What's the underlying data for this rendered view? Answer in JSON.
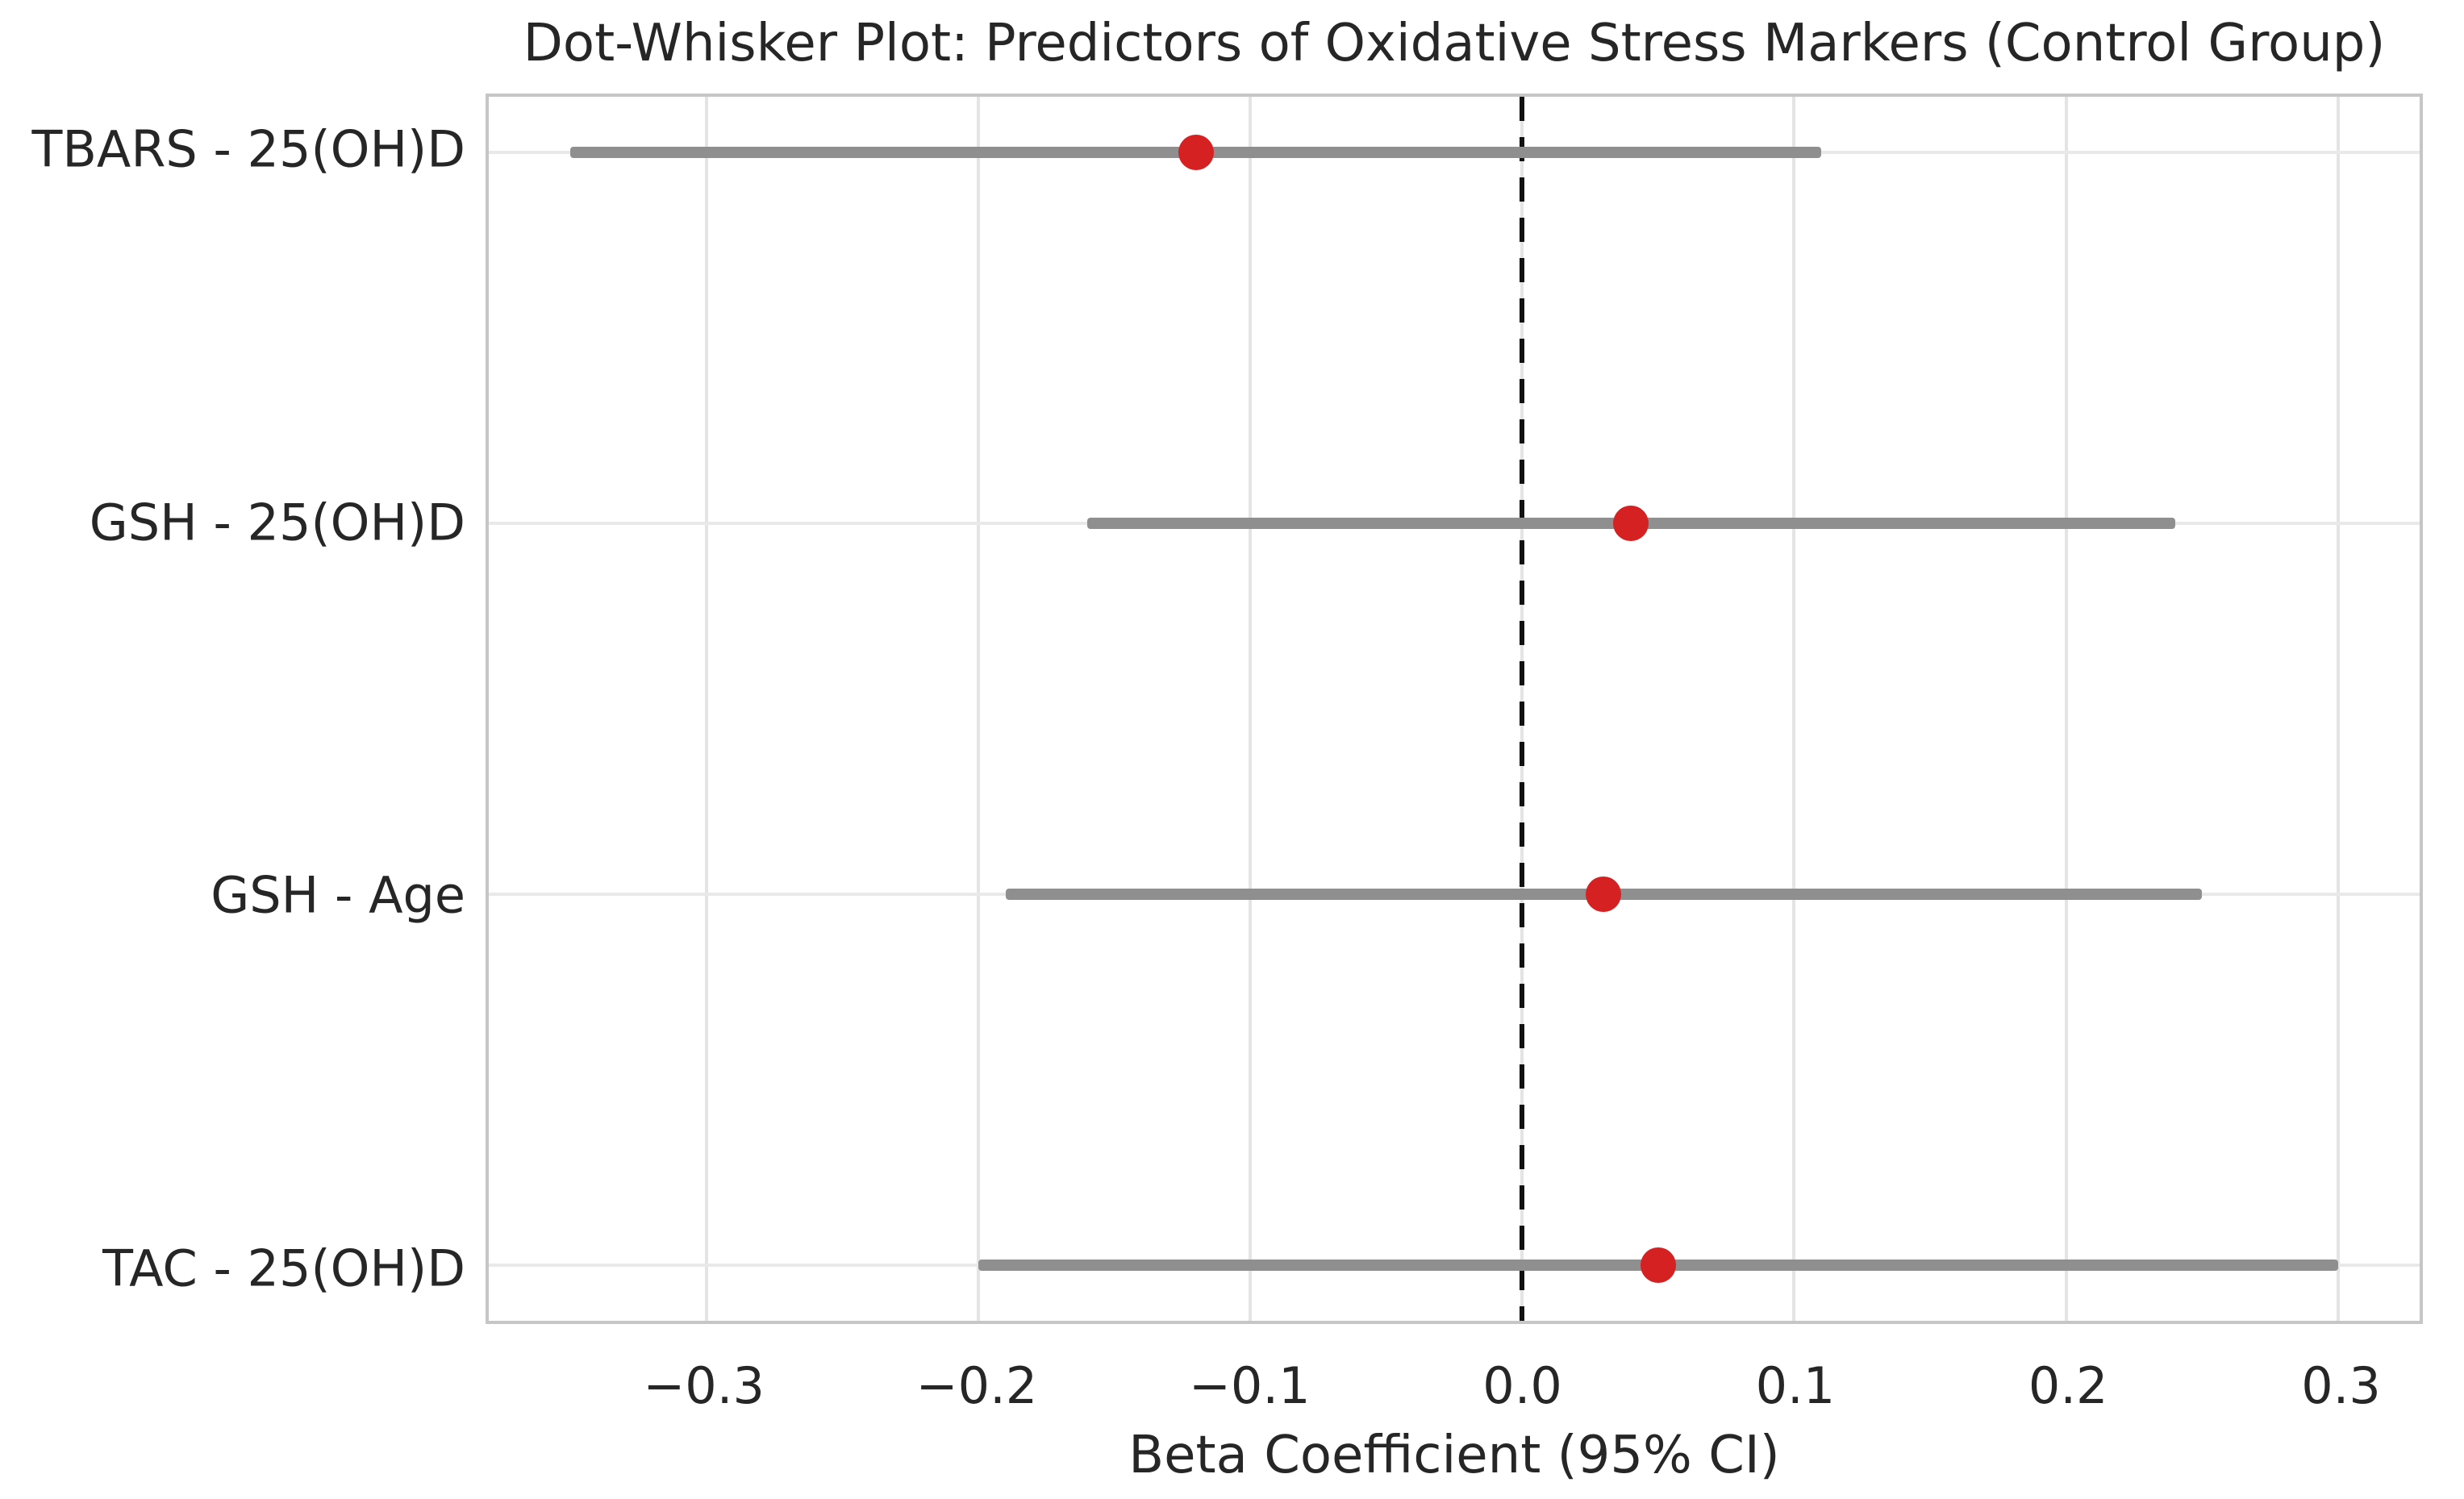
{
  "title": "Dot-Whisker Plot: Predictors of Oxidative Stress Markers (Control Group)",
  "chart_data": {
    "type": "scatter",
    "subtype": "dot-whisker",
    "title": "Dot-Whisker Plot: Predictors of Oxidative Stress Markers (Control Group)",
    "xlabel": "Beta Coefficient (95% CI)",
    "ylabel": "",
    "categories": [
      "TBARS - 25(OH)D",
      "GSH - 25(OH)D",
      "GSH - Age",
      "TAC - 25(OH)D"
    ],
    "values": [
      -0.12,
      0.04,
      0.03,
      0.05
    ],
    "ci_low": [
      -0.35,
      -0.16,
      -0.19,
      -0.2
    ],
    "ci_high": [
      0.11,
      0.24,
      0.25,
      0.3
    ],
    "points": [
      {
        "label": "TBARS - 25(OH)D",
        "beta": -0.12,
        "ci_low": -0.35,
        "ci_high": 0.11
      },
      {
        "label": "GSH - 25(OH)D",
        "beta": 0.04,
        "ci_low": -0.16,
        "ci_high": 0.24
      },
      {
        "label": "GSH - Age",
        "beta": 0.03,
        "ci_low": -0.19,
        "ci_high": 0.25
      },
      {
        "label": "TAC - 25(OH)D",
        "beta": 0.05,
        "ci_low": -0.2,
        "ci_high": 0.3
      }
    ],
    "xlim": [
      -0.38,
      0.33
    ],
    "x_ticks": [
      -0.3,
      -0.2,
      -0.1,
      0.0,
      0.1,
      0.2,
      0.3
    ],
    "x_tick_labels": [
      "−0.3",
      "−0.2",
      "−0.1",
      "0.0",
      "0.1",
      "0.2",
      "0.3"
    ],
    "reference_line_x": 0.0,
    "grid": true,
    "legend_position": "none",
    "colors": {
      "dot": "#d62122",
      "whisker": "#8f8f8f",
      "reference_line": "#111111",
      "grid_v": "#e4e4e4",
      "grid_h": "#e9e9e9",
      "spine": "#c6c6c6",
      "text": "#262626",
      "background": "#ffffff"
    }
  }
}
